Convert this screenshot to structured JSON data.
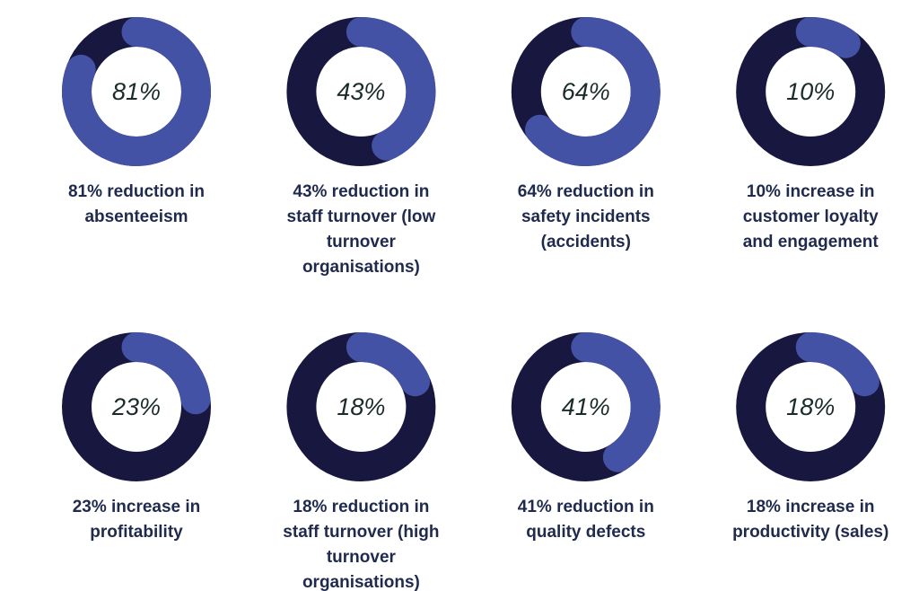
{
  "chart_data": [
    {
      "type": "donut",
      "values": [
        81
      ],
      "value_labels": [
        "81%"
      ],
      "caption": "81% reduction in absenteeism",
      "color": "#4452a6",
      "track_color": "#17173f"
    },
    {
      "type": "donut",
      "values": [
        43
      ],
      "value_labels": [
        "43%"
      ],
      "caption": "43% reduction in staff turnover (low turnover organisations)",
      "color": "#4452a6",
      "track_color": "#17173f"
    },
    {
      "type": "donut",
      "values": [
        64
      ],
      "value_labels": [
        "64%"
      ],
      "caption": "64% reduction in safety incidents (accidents)",
      "color": "#4452a6",
      "track_color": "#17173f"
    },
    {
      "type": "donut",
      "values": [
        10
      ],
      "value_labels": [
        "10%"
      ],
      "caption": "10% increase in customer loyalty and engagement",
      "color": "#4452a6",
      "track_color": "#17173f"
    },
    {
      "type": "donut",
      "values": [
        23
      ],
      "value_labels": [
        "23%"
      ],
      "caption": "23% increase in profitability",
      "color": "#4452a6",
      "track_color": "#17173f"
    },
    {
      "type": "donut",
      "values": [
        18
      ],
      "value_labels": [
        "18%"
      ],
      "caption": "18% reduction in staff turnover (high turnover organisations)",
      "color": "#4452a6",
      "track_color": "#17173f"
    },
    {
      "type": "donut",
      "values": [
        41
      ],
      "value_labels": [
        "41%"
      ],
      "caption": "41% reduction in quality defects",
      "color": "#4452a6",
      "track_color": "#17173f"
    },
    {
      "type": "donut",
      "values": [
        18
      ],
      "value_labels": [
        "18%"
      ],
      "caption": "18% increase in productivity (sales)",
      "color": "#4452a6",
      "track_color": "#17173f"
    }
  ]
}
